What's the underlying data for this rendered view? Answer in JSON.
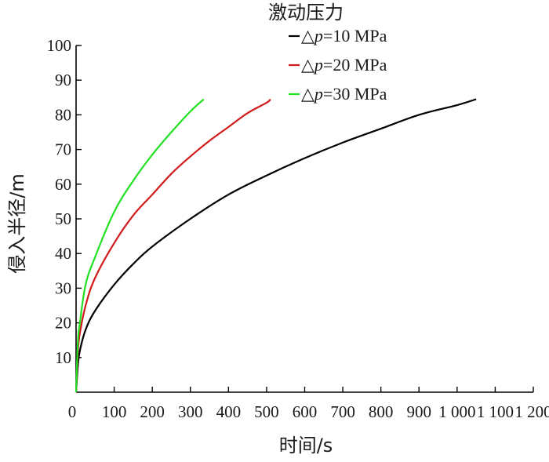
{
  "chart_data": {
    "type": "line",
    "xlabel": "时间/s",
    "ylabel": "侵入半径/m",
    "legend_title": "激动压力",
    "legend_placement": "top-right",
    "xlim": [
      0,
      1200
    ],
    "ylim": [
      0,
      100
    ],
    "x_ticks": [
      0,
      100,
      200,
      300,
      400,
      500,
      600,
      700,
      800,
      900,
      1000,
      1100,
      1200
    ],
    "x_tick_labels": [
      "0",
      "100",
      "200",
      "300",
      "400",
      "500",
      "600",
      "700",
      "800",
      "900",
      "1 000",
      "1 100",
      "1 200"
    ],
    "y_ticks": [
      10,
      20,
      30,
      40,
      50,
      60,
      70,
      80,
      90,
      100
    ],
    "y_tick_labels": [
      "10",
      "20",
      "30",
      "40",
      "50",
      "60",
      "70",
      "80",
      "90",
      "100"
    ],
    "grid": false,
    "series": [
      {
        "name": "△p=10 MPa",
        "legend_prefix": "△",
        "legend_var": "p",
        "legend_suffix": "=10 MPa",
        "color": "#000000",
        "x": [
          0,
          5,
          10,
          25,
          50,
          100,
          150,
          200,
          300,
          400,
          500,
          600,
          700,
          800,
          900,
          1000,
          1050
        ],
        "y": [
          0,
          8,
          12,
          18,
          23.5,
          31,
          37,
          42,
          50,
          57,
          62.5,
          67.5,
          72,
          76,
          80,
          82.8,
          84.5
        ]
      },
      {
        "name": "△p=20 MPa",
        "legend_prefix": "△",
        "legend_var": "p",
        "legend_suffix": "=20 MPa",
        "color": "#d11a1a",
        "x": [
          0,
          5,
          10,
          25,
          50,
          100,
          150,
          200,
          250,
          300,
          350,
          400,
          450,
          500,
          510
        ],
        "y": [
          0,
          12,
          17,
          25,
          33,
          43,
          51,
          57,
          63,
          68,
          72.5,
          76.5,
          80.5,
          83.5,
          84.5
        ]
      },
      {
        "name": "△p=30 MPa",
        "legend_prefix": "△",
        "legend_var": "p",
        "legend_suffix": "=30 MPa",
        "color": "#22e022",
        "x": [
          0,
          5,
          10,
          25,
          50,
          100,
          150,
          200,
          250,
          300,
          335
        ],
        "y": [
          0,
          15,
          20,
          31,
          39,
          52,
          61,
          68.5,
          75,
          81,
          84.5
        ]
      }
    ]
  }
}
